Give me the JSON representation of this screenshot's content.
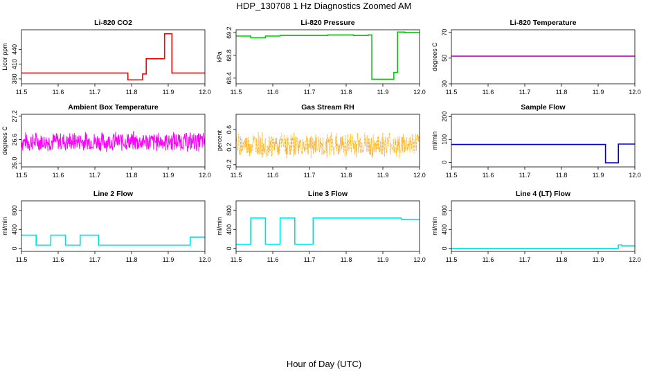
{
  "figure": {
    "title": "HDP_130708  1 Hz Diagnostics Zoomed AM",
    "xlabel": "Hour of Day (UTC)"
  },
  "chart_data": [
    {
      "type": "line",
      "title": "Li-820 CO2",
      "ylabel": "Licor ppm",
      "color": "#ff0000",
      "xlim": [
        11.5,
        12.0
      ],
      "ylim": [
        370,
        480
      ],
      "xticks": [
        "11.5",
        "11.6",
        "11.7",
        "11.8",
        "11.9",
        "12.0"
      ],
      "yticks": [
        "380",
        "410",
        "440"
      ],
      "series": [
        {
          "x": [
            11.5,
            11.79,
            11.79,
            11.83,
            11.83,
            11.84,
            11.84,
            11.89,
            11.89,
            11.91,
            11.91,
            12.0
          ],
          "y": [
            392,
            392,
            378,
            378,
            390,
            390,
            421,
            421,
            472,
            472,
            392,
            392
          ]
        }
      ]
    },
    {
      "type": "line",
      "title": "Li-820 Pressure",
      "ylabel": "kPa",
      "color": "#00cc00",
      "xlim": [
        11.5,
        12.0
      ],
      "ylim": [
        68.3,
        69.25
      ],
      "xticks": [
        "11.5",
        "11.6",
        "11.7",
        "11.8",
        "11.9",
        "12.0"
      ],
      "yticks": [
        "68.4",
        "68.8",
        "69.2"
      ],
      "series": [
        {
          "x": [
            11.5,
            11.54,
            11.54,
            11.58,
            11.58,
            11.62,
            11.62,
            11.75,
            11.75,
            11.82,
            11.82,
            11.86,
            11.86,
            11.87,
            11.87,
            11.93,
            11.93,
            11.94,
            11.94,
            11.96,
            11.96,
            12.0
          ],
          "y": [
            69.14,
            69.14,
            69.11,
            69.11,
            69.14,
            69.14,
            69.15,
            69.15,
            69.16,
            69.16,
            69.15,
            69.15,
            69.16,
            69.16,
            68.38,
            68.38,
            68.5,
            68.5,
            69.21,
            69.21,
            69.2,
            69.2
          ]
        }
      ]
    },
    {
      "type": "line",
      "title": "Li-820 Temperature",
      "ylabel": "degrees C",
      "color": "#cc00cc",
      "xlim": [
        11.5,
        12.0
      ],
      "ylim": [
        30,
        72
      ],
      "xticks": [
        "11.5",
        "11.6",
        "11.7",
        "11.8",
        "11.9",
        "12.0"
      ],
      "yticks": [
        "30",
        "50",
        "70"
      ],
      "series": [
        {
          "x": [
            11.5,
            12.0
          ],
          "y": [
            51.5,
            51.5
          ]
        }
      ]
    },
    {
      "type": "line",
      "title": "Ambient Box Temperature",
      "ylabel": "degrees C",
      "color": "#ff00ff",
      "xlim": [
        11.5,
        12.0
      ],
      "ylim": [
        25.9,
        27.25
      ],
      "xticks": [
        "11.5",
        "11.6",
        "11.7",
        "11.8",
        "11.9",
        "12.0"
      ],
      "yticks": [
        "26.0",
        "26.6",
        "27.2"
      ],
      "series": [
        {
          "noise": {
            "n": 480,
            "mean": 26.55,
            "amplitude": 0.28,
            "seed": 7
          }
        }
      ]
    },
    {
      "type": "scatter",
      "title": "Gas Stream RH",
      "ylabel": "percent",
      "color": "#ffa500",
      "xlim": [
        11.5,
        12.0
      ],
      "ylim": [
        -0.25,
        0.95
      ],
      "xticks": [
        "11.5",
        "11.6",
        "11.7",
        "11.8",
        "11.9",
        "12.0"
      ],
      "yticks": [
        "-0.2",
        "0.2",
        "0.6"
      ],
      "series": [
        {
          "noise": {
            "n": 520,
            "mean": 0.25,
            "amplitude": 0.32,
            "seed": 19
          }
        }
      ]
    },
    {
      "type": "line",
      "title": "Sample Flow",
      "ylabel": "ml/min",
      "color": "#0000cc",
      "xlim": [
        11.5,
        12.0
      ],
      "ylim": [
        -20,
        210
      ],
      "xticks": [
        "11.5",
        "11.6",
        "11.7",
        "11.8",
        "11.9",
        "12.0"
      ],
      "yticks": [
        "0",
        "100",
        "200"
      ],
      "series": [
        {
          "x": [
            11.5,
            11.92,
            11.92,
            11.955,
            11.955,
            12.0
          ],
          "y": [
            78,
            78,
            -2,
            -2,
            80,
            80
          ]
        }
      ]
    },
    {
      "type": "line",
      "title": "Line 2 Flow",
      "ylabel": "ml/min",
      "color": "#00e0e0",
      "xlim": [
        11.5,
        12.0
      ],
      "ylim": [
        -60,
        1000
      ],
      "xticks": [
        "11.5",
        "11.6",
        "11.7",
        "11.8",
        "11.9",
        "12.0"
      ],
      "yticks": [
        "0",
        "400",
        "800"
      ],
      "series": [
        {
          "x": [
            11.5,
            11.54,
            11.54,
            11.58,
            11.58,
            11.62,
            11.62,
            11.66,
            11.66,
            11.71,
            11.71,
            11.96,
            11.96,
            12.0
          ],
          "y": [
            280,
            280,
            70,
            70,
            280,
            280,
            70,
            70,
            280,
            280,
            70,
            70,
            240,
            240
          ]
        }
      ]
    },
    {
      "type": "line",
      "title": "Line 3 Flow",
      "ylabel": "ml/min",
      "color": "#00e0e0",
      "xlim": [
        11.5,
        12.0
      ],
      "ylim": [
        -60,
        1000
      ],
      "xticks": [
        "11.5",
        "11.6",
        "11.7",
        "11.8",
        "11.9",
        "12.0"
      ],
      "yticks": [
        "0",
        "400",
        "800"
      ],
      "series": [
        {
          "x": [
            11.5,
            11.54,
            11.54,
            11.58,
            11.58,
            11.62,
            11.62,
            11.66,
            11.66,
            11.71,
            11.71,
            11.95,
            11.95,
            12.0
          ],
          "y": [
            90,
            90,
            640,
            640,
            90,
            90,
            640,
            640,
            90,
            90,
            640,
            640,
            610,
            610
          ]
        }
      ]
    },
    {
      "type": "line",
      "title": "Line 4 (LT) Flow",
      "ylabel": "ml/min",
      "color": "#00e0e0",
      "xlim": [
        11.5,
        12.0
      ],
      "ylim": [
        -60,
        1000
      ],
      "xticks": [
        "11.5",
        "11.6",
        "11.7",
        "11.8",
        "11.9",
        "12.0"
      ],
      "yticks": [
        "0",
        "400",
        "800"
      ],
      "series": [
        {
          "x": [
            11.5,
            11.955,
            11.955,
            11.965,
            11.965,
            12.0
          ],
          "y": [
            2,
            2,
            75,
            75,
            55,
            55
          ]
        }
      ]
    }
  ]
}
